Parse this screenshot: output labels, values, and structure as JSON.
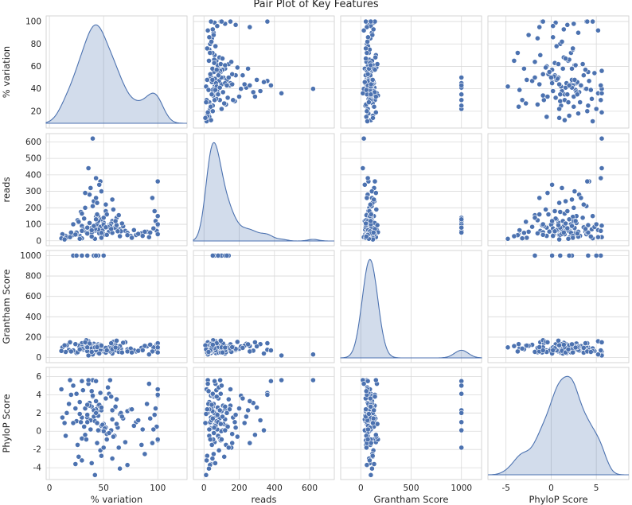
{
  "colors": {
    "marker": "#4C72B0",
    "marker_edge": "#ffffff",
    "kde_fill": "#4C72B0",
    "grid": "#d9d9d9",
    "text": "#262626"
  },
  "chart_data": {
    "type": "scatter",
    "title": "Pair Plot of Key Features",
    "variables": [
      {
        "name": "% variation",
        "ylim": [
          5,
          105
        ],
        "xlim": [
          -3,
          127
        ],
        "ticks": [
          20,
          40,
          60,
          80,
          100
        ],
        "xticks": [
          0,
          50,
          100
        ]
      },
      {
        "name": "reads",
        "ylim": [
          -30,
          650
        ],
        "xlim": [
          -60,
          740
        ],
        "ticks": [
          0,
          100,
          200,
          300,
          400,
          500,
          600
        ],
        "xticks": [
          0,
          200,
          400,
          600
        ]
      },
      {
        "name": "Grantham Score",
        "ylim": [
          -50,
          1050
        ],
        "xlim": [
          -200,
          1200
        ],
        "ticks": [
          0,
          200,
          400,
          600,
          800,
          1000
        ],
        "xticks": [
          0,
          500,
          1000
        ]
      },
      {
        "name": "PhyloP Score",
        "ylim": [
          -5.3,
          7.0
        ],
        "xlim": [
          -7,
          8.6
        ],
        "ticks": [
          -4,
          -2,
          0,
          2,
          4,
          6
        ],
        "xticks": [
          -5,
          0,
          5
        ]
      }
    ],
    "points": [
      [
        42,
        60,
        80,
        2.1
      ],
      [
        35,
        45,
        120,
        1.5
      ],
      [
        50,
        110,
        60,
        0.8
      ],
      [
        28,
        30,
        90,
        3.2
      ],
      [
        60,
        80,
        70,
        -0.5
      ],
      [
        45,
        150,
        130,
        2.8
      ],
      [
        38,
        75,
        55,
        0.2
      ],
      [
        55,
        95,
        100,
        4.1
      ],
      [
        25,
        40,
        45,
        1.1
      ],
      [
        70,
        60,
        150,
        -1.2
      ],
      [
        33,
        200,
        85,
        2.5
      ],
      [
        48,
        130,
        110,
        0.6
      ],
      [
        40,
        55,
        65,
        3.8
      ],
      [
        65,
        70,
        95,
        1.9
      ],
      [
        30,
        90,
        140,
        -0.8
      ],
      [
        52,
        180,
        75,
        0.4
      ],
      [
        44,
        100,
        50,
        2.2
      ],
      [
        36,
        65,
        160,
        5.2
      ],
      [
        58,
        120,
        40,
        1.3
      ],
      [
        47,
        85,
        125,
        -2.1
      ],
      [
        22,
        35,
        70,
        0.9
      ],
      [
        62,
        140,
        105,
        3.5
      ],
      [
        39,
        50,
        88,
        2.7
      ],
      [
        53,
        160,
        60,
        -0.3
      ],
      [
        41,
        240,
        135,
        1.6
      ],
      [
        31,
        70,
        78,
        4.5
      ],
      [
        57,
        105,
        98,
        0.1
      ],
      [
        46,
        45,
        115,
        2.9
      ],
      [
        26,
        125,
        52,
        -1.5
      ],
      [
        68,
        88,
        145,
        1.4
      ],
      [
        37,
        280,
        68,
        3.1
      ],
      [
        49,
        62,
        102,
        0.7
      ],
      [
        43,
        145,
        82,
        2.4
      ],
      [
        34,
        52,
        170,
        -0.9
      ],
      [
        56,
        92,
        58,
        5.6
      ],
      [
        29,
        175,
        92,
        1.0
      ],
      [
        61,
        78,
        122,
        2.6
      ],
      [
        51,
        38,
        72,
        0.3
      ],
      [
        40,
        210,
        108,
        3.9
      ],
      [
        45,
        68,
        44,
        1.7
      ],
      [
        27,
        115,
        118,
        -2.8
      ],
      [
        66,
        58,
        86,
        2.0
      ],
      [
        38,
        320,
        132,
        1.2
      ],
      [
        54,
        84,
        64,
        4.8
      ],
      [
        32,
        135,
        96,
        0.5
      ],
      [
        48,
        48,
        74,
        2.3
      ],
      [
        59,
        190,
        154,
        -0.6
      ],
      [
        35,
        76,
        62,
        1.8
      ],
      [
        43,
        260,
        112,
        3.3
      ],
      [
        50,
        98,
        84,
        0.0
      ],
      [
        24,
        42,
        128,
        2.5
      ],
      [
        64,
        155,
        56,
        -1.8
      ],
      [
        42,
        72,
        94,
        1.1
      ],
      [
        47,
        360,
        76,
        4.2
      ],
      [
        37,
        108,
        138,
        2.8
      ],
      [
        55,
        56,
        66,
        -0.2
      ],
      [
        30,
        165,
        104,
        1.5
      ],
      [
        52,
        82,
        48,
        3.6
      ],
      [
        44,
        230,
        116,
        0.9
      ],
      [
        39,
        64,
        90,
        -3.5
      ],
      [
        72,
        48,
        80,
        2.2
      ],
      [
        80,
        35,
        60,
        1.0
      ],
      [
        90,
        55,
        110,
        3.0
      ],
      [
        98,
        120,
        70,
        2.5
      ],
      [
        100,
        150,
        90,
        4.6
      ],
      [
        99,
        60,
        130,
        0.5
      ],
      [
        100,
        95,
        50,
        -1.0
      ],
      [
        97,
        180,
        85,
        1.8
      ],
      [
        100,
        40,
        140,
        3.9
      ],
      [
        96,
        75,
        100,
        0.2
      ],
      [
        18,
        25,
        75,
        3.0
      ],
      [
        15,
        30,
        55,
        -0.5
      ],
      [
        12,
        40,
        100,
        1.5
      ],
      [
        20,
        50,
        60,
        4.0
      ],
      [
        16,
        20,
        120,
        2.0
      ],
      [
        85,
        45,
        95,
        -1.5
      ],
      [
        78,
        65,
        72,
        0.6
      ],
      [
        75,
        30,
        88,
        2.4
      ],
      [
        88,
        55,
        115,
        -2.5
      ],
      [
        82,
        42,
        66,
        1.2
      ],
      [
        40,
        620,
        30,
        5.6
      ],
      [
        36,
        440,
        20,
        5.6
      ],
      [
        43,
        380,
        70,
        5.5
      ],
      [
        100,
        360,
        140,
        4.0
      ],
      [
        48,
        300,
        110,
        2.6
      ],
      [
        46,
        340,
        40,
        0.1
      ],
      [
        33,
        290,
        150,
        -0.4
      ],
      [
        58,
        250,
        130,
        2.3
      ],
      [
        95,
        260,
        60,
        -1.3
      ],
      [
        52,
        220,
        95,
        3.6
      ],
      [
        41,
        90,
        1000,
        2.3
      ],
      [
        30,
        60,
        1000,
        5.5
      ],
      [
        50,
        140,
        1000,
        -1.8
      ],
      [
        22,
        100,
        1000,
        5.0
      ],
      [
        45,
        120,
        1000,
        0.1
      ],
      [
        35,
        80,
        1000,
        1.0
      ],
      [
        25,
        50,
        1000,
        4.1
      ],
      [
        43,
        130,
        1000,
        2.0
      ],
      [
        100,
        100,
        100,
        -0.9
      ],
      [
        11,
        15,
        65,
        4.6
      ],
      [
        19,
        22,
        150,
        5.6
      ],
      [
        24,
        38,
        132,
        -3.6
      ],
      [
        58,
        48,
        82,
        -3.0
      ],
      [
        72,
        34,
        60,
        -3.7
      ],
      [
        65,
        28,
        112,
        -4.1
      ],
      [
        42,
        12,
        100,
        -4.8
      ],
      [
        48,
        18,
        118,
        -2.7
      ],
      [
        30,
        15,
        88,
        -3.2
      ],
      [
        92,
        22,
        30,
        5.2
      ],
      [
        67,
        105,
        50,
        1.6
      ],
      [
        63,
        58,
        92,
        0.4
      ],
      [
        57,
        72,
        140,
        3.8
      ],
      [
        44,
        160,
        102,
        -1.3
      ],
      [
        62,
        95,
        165,
        0.8
      ],
      [
        35,
        44,
        100,
        2.9
      ],
      [
        86,
        30,
        72,
        0.2
      ],
      [
        93,
        50,
        126,
        1.4
      ],
      [
        76,
        18,
        50,
        2.4
      ],
      [
        14,
        8,
        120,
        0.9
      ],
      [
        28,
        12,
        80,
        1.9
      ],
      [
        53,
        36,
        70,
        -0.9
      ],
      [
        39,
        26,
        55,
        4.4
      ],
      [
        61,
        120,
        98,
        2.7
      ]
    ]
  }
}
